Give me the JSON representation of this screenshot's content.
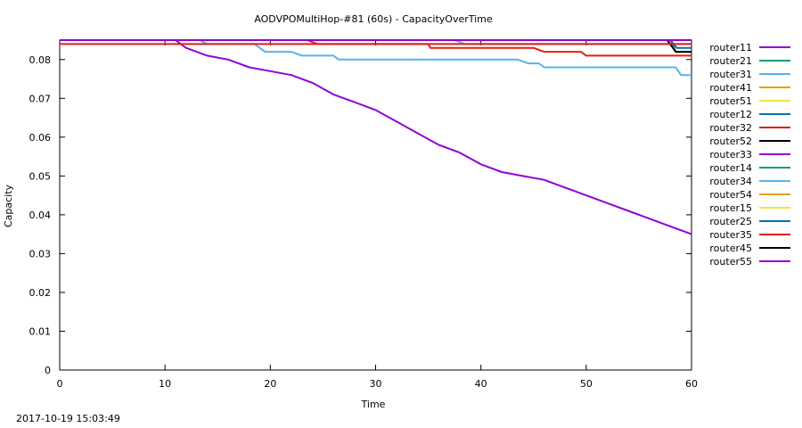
{
  "chart_data": {
    "type": "line",
    "title": "AODVPOMultiHop-#81 (60s) - CapacityOverTime",
    "xlabel": "Time",
    "ylabel": "Capacity",
    "xlim": [
      0,
      60
    ],
    "ylim": [
      0,
      0.085
    ],
    "x_ticks": [
      0,
      10,
      20,
      30,
      40,
      50,
      60
    ],
    "y_ticks": [
      0,
      0.01,
      0.02,
      0.03,
      0.04,
      0.05,
      0.06,
      0.07,
      0.08
    ],
    "y_tick_labels": [
      "0",
      "0.01",
      "0.02",
      "0.03",
      "0.04",
      "0.05",
      "0.06",
      "0.07",
      "0.08"
    ],
    "grid": false,
    "legend_position": "right",
    "series": [
      {
        "name": "router11",
        "color": "#9400d3",
        "x": [
          0,
          60
        ],
        "y": [
          0.085,
          0.085
        ]
      },
      {
        "name": "router21",
        "color": "#009e73",
        "x": [
          0,
          58.0,
          58.5,
          60
        ],
        "y": [
          0.085,
          0.085,
          0.082,
          0.082
        ]
      },
      {
        "name": "router31",
        "color": "#56b4e9",
        "x": [
          0,
          37.5,
          38.5,
          60
        ],
        "y": [
          0.085,
          0.085,
          0.084,
          0.084
        ]
      },
      {
        "name": "router41",
        "color": "#e69f00",
        "x": [
          0,
          60
        ],
        "y": [
          0.085,
          0.085
        ]
      },
      {
        "name": "router51",
        "color": "#f0e442",
        "x": [
          0,
          60
        ],
        "y": [
          0.085,
          0.085
        ]
      },
      {
        "name": "router12",
        "color": "#0072b2",
        "x": [
          0,
          58.0,
          58.6,
          60
        ],
        "y": [
          0.085,
          0.085,
          0.083,
          0.083
        ]
      },
      {
        "name": "router32",
        "color": "#e51e10",
        "x": [
          0,
          23.5,
          24.5,
          35,
          35.2,
          45,
          46,
          49.5,
          50,
          60
        ],
        "y": [
          0.085,
          0.085,
          0.084,
          0.084,
          0.083,
          0.083,
          0.082,
          0.082,
          0.081,
          0.081
        ]
      },
      {
        "name": "router52",
        "color": "#000000",
        "x": [
          0,
          57.7,
          58.5,
          60
        ],
        "y": [
          0.085,
          0.085,
          0.082,
          0.082
        ]
      },
      {
        "name": "router33",
        "color": "#9400d3",
        "x": [
          0,
          11,
          12,
          14,
          16,
          18,
          20,
          22,
          24,
          26,
          28,
          30,
          32,
          34,
          36,
          38,
          40,
          42,
          44,
          46,
          48,
          50,
          52,
          54,
          56,
          58,
          60
        ],
        "y": [
          0.085,
          0.085,
          0.083,
          0.081,
          0.08,
          0.078,
          0.077,
          0.076,
          0.074,
          0.071,
          0.069,
          0.067,
          0.064,
          0.061,
          0.058,
          0.056,
          0.053,
          0.051,
          0.05,
          0.049,
          0.047,
          0.045,
          0.043,
          0.041,
          0.039,
          0.037,
          0.035
        ]
      },
      {
        "name": "router14",
        "color": "#009e73",
        "x": [
          0,
          60
        ],
        "y": [
          0.085,
          0.085
        ]
      },
      {
        "name": "router34",
        "color": "#56b4e9",
        "x": [
          0,
          13.3,
          14,
          18.5,
          19.5,
          22,
          23,
          26,
          26.5,
          43.5,
          44.5,
          45.5,
          46,
          58.5,
          59,
          60
        ],
        "y": [
          0.085,
          0.085,
          0.084,
          0.084,
          0.082,
          0.082,
          0.081,
          0.081,
          0.08,
          0.08,
          0.079,
          0.079,
          0.078,
          0.078,
          0.076,
          0.076
        ]
      },
      {
        "name": "router54",
        "color": "#e69f00",
        "x": [
          0,
          60
        ],
        "y": [
          0.085,
          0.085
        ]
      },
      {
        "name": "router15",
        "color": "#f0e442",
        "x": [
          0,
          60
        ],
        "y": [
          0.085,
          0.085
        ]
      },
      {
        "name": "router25",
        "color": "#0072b2",
        "x": [
          0,
          60
        ],
        "y": [
          0.085,
          0.085
        ]
      },
      {
        "name": "router35",
        "color": "#e51e10",
        "x": [
          0,
          60
        ],
        "y": [
          0.084,
          0.084
        ]
      },
      {
        "name": "router45",
        "color": "#000000",
        "x": [
          0,
          60
        ],
        "y": [
          0.085,
          0.085
        ]
      },
      {
        "name": "router55",
        "color": "#9400d3",
        "x": [
          0,
          60
        ],
        "y": [
          0.085,
          0.085
        ]
      }
    ]
  },
  "footer": {
    "timestamp": "2017-10-19 15:03:49"
  }
}
